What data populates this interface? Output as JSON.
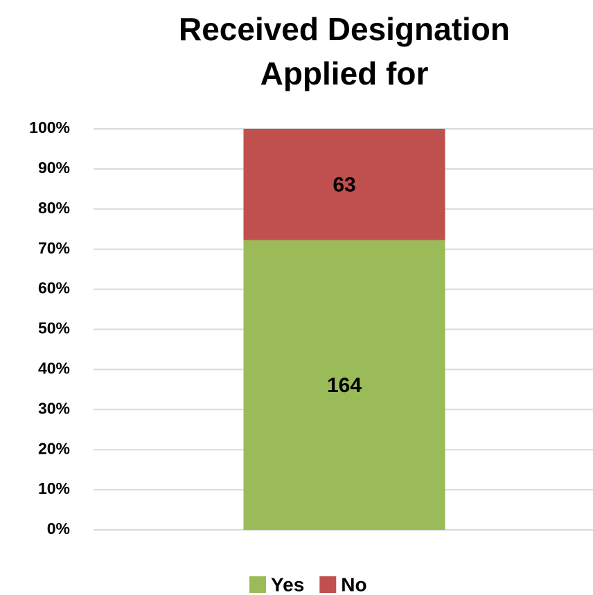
{
  "chart_data": {
    "type": "bar",
    "stacking": "percent",
    "title": "Received Designation Applied for",
    "categories": [
      null
    ],
    "series": [
      {
        "name": "Yes",
        "color": "#9bbb59",
        "values": [
          164
        ]
      },
      {
        "name": "No",
        "color": "#c0504d",
        "values": [
          63
        ]
      }
    ],
    "ylim": [
      0,
      100
    ],
    "yticks": [
      {
        "value": 0,
        "label": "0%"
      },
      {
        "value": 10,
        "label": "10%"
      },
      {
        "value": 20,
        "label": "20%"
      },
      {
        "value": 30,
        "label": "30%"
      },
      {
        "value": 40,
        "label": "40%"
      },
      {
        "value": 50,
        "label": "50%"
      },
      {
        "value": 60,
        "label": "60%"
      },
      {
        "value": 70,
        "label": "70%"
      },
      {
        "value": 80,
        "label": "80%"
      },
      {
        "value": 90,
        "label": "90%"
      },
      {
        "value": 100,
        "label": "100%"
      }
    ],
    "grid": true,
    "legend": "bottom"
  }
}
